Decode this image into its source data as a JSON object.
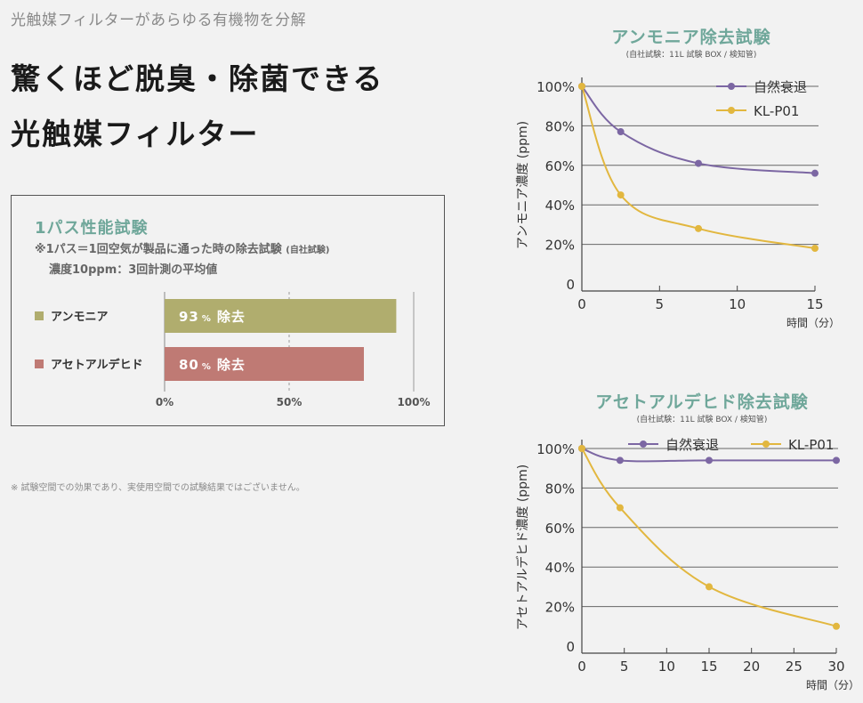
{
  "eyebrow": "光触媒フィルターがあらゆる有機物を分解",
  "headline": {
    "line1": "驚くほど脱臭・除菌できる",
    "line2": "光触媒フィルター"
  },
  "disclaimer": "※ 試験空間での効果であり、実使用空間での試験結果ではございません。",
  "colors": {
    "accent_green": "#6fa79a",
    "ammonia_bar": "#b0ad6e",
    "aldehyde_bar": "#bf7a74",
    "natural_decay": "#7c67a3",
    "klp01": "#e2b73f"
  },
  "chart_data": [
    {
      "id": "one-pass",
      "type": "bar",
      "title": "1パス性能試験",
      "note_line1": "※1パス＝1回空気が製品に通った時の除去試験",
      "note_line1_small": "(自社試験)",
      "note_line2": "濃度10ppm：3回計測の平均値",
      "categories": [
        "アンモニア",
        "アセトアルデヒド"
      ],
      "values": [
        93,
        80
      ],
      "value_labels": [
        {
          "num": "93",
          "unit": "%",
          "text": "除去"
        },
        {
          "num": "80",
          "unit": "%",
          "text": "除去"
        }
      ],
      "xticks": [
        "0%",
        "50%",
        "100%"
      ],
      "xlim": [
        0,
        100
      ]
    },
    {
      "id": "ammonia-test",
      "type": "line",
      "title": "アンモニア除去試験",
      "subtitle": "(自社試験：11L 試験 BOX / 検知管)",
      "ylabel": "アンモニア濃度 (ppm)",
      "xlabel": "時間（分）",
      "xlim": [
        0,
        15
      ],
      "ylim": [
        0,
        100
      ],
      "xticks": [
        "0",
        "5",
        "10",
        "15"
      ],
      "xtick_values": [
        0,
        5,
        10,
        15
      ],
      "yticks": [
        "0",
        "20%",
        "40%",
        "60%",
        "80%",
        "100%"
      ],
      "ytick_values": [
        0,
        20,
        40,
        60,
        80,
        100
      ],
      "legend_position": "top-right",
      "series": [
        {
          "name": "自然衰退",
          "x": [
            0,
            2.5,
            7.5,
            15
          ],
          "y": [
            100,
            77,
            61,
            56
          ]
        },
        {
          "name": "KL-P01",
          "x": [
            0,
            2.5,
            7.5,
            15
          ],
          "y": [
            100,
            45,
            28,
            18
          ]
        }
      ]
    },
    {
      "id": "acetaldehyde-test",
      "type": "line",
      "title": "アセトアルデヒド除去試験",
      "subtitle": "(自社試験：11L 試験 BOX / 検知管)",
      "ylabel": "アセトアルデヒド濃度 (ppm)",
      "xlabel": "時間（分）",
      "xlim": [
        0,
        30
      ],
      "ylim": [
        0,
        100
      ],
      "xticks": [
        "0",
        "5",
        "10",
        "15",
        "20",
        "25",
        "30"
      ],
      "xtick_values": [
        0,
        5,
        10,
        15,
        20,
        25,
        30
      ],
      "yticks": [
        "0",
        "20%",
        "40%",
        "60%",
        "80%",
        "100%"
      ],
      "ytick_values": [
        0,
        20,
        40,
        60,
        80,
        100
      ],
      "legend_position": "top-right",
      "series": [
        {
          "name": "自然衰退",
          "x": [
            0,
            4.5,
            15,
            30
          ],
          "y": [
            100,
            94,
            94,
            94
          ]
        },
        {
          "name": "KL-P01",
          "x": [
            0,
            4.5,
            15,
            30
          ],
          "y": [
            100,
            70,
            30,
            10
          ]
        }
      ]
    }
  ]
}
